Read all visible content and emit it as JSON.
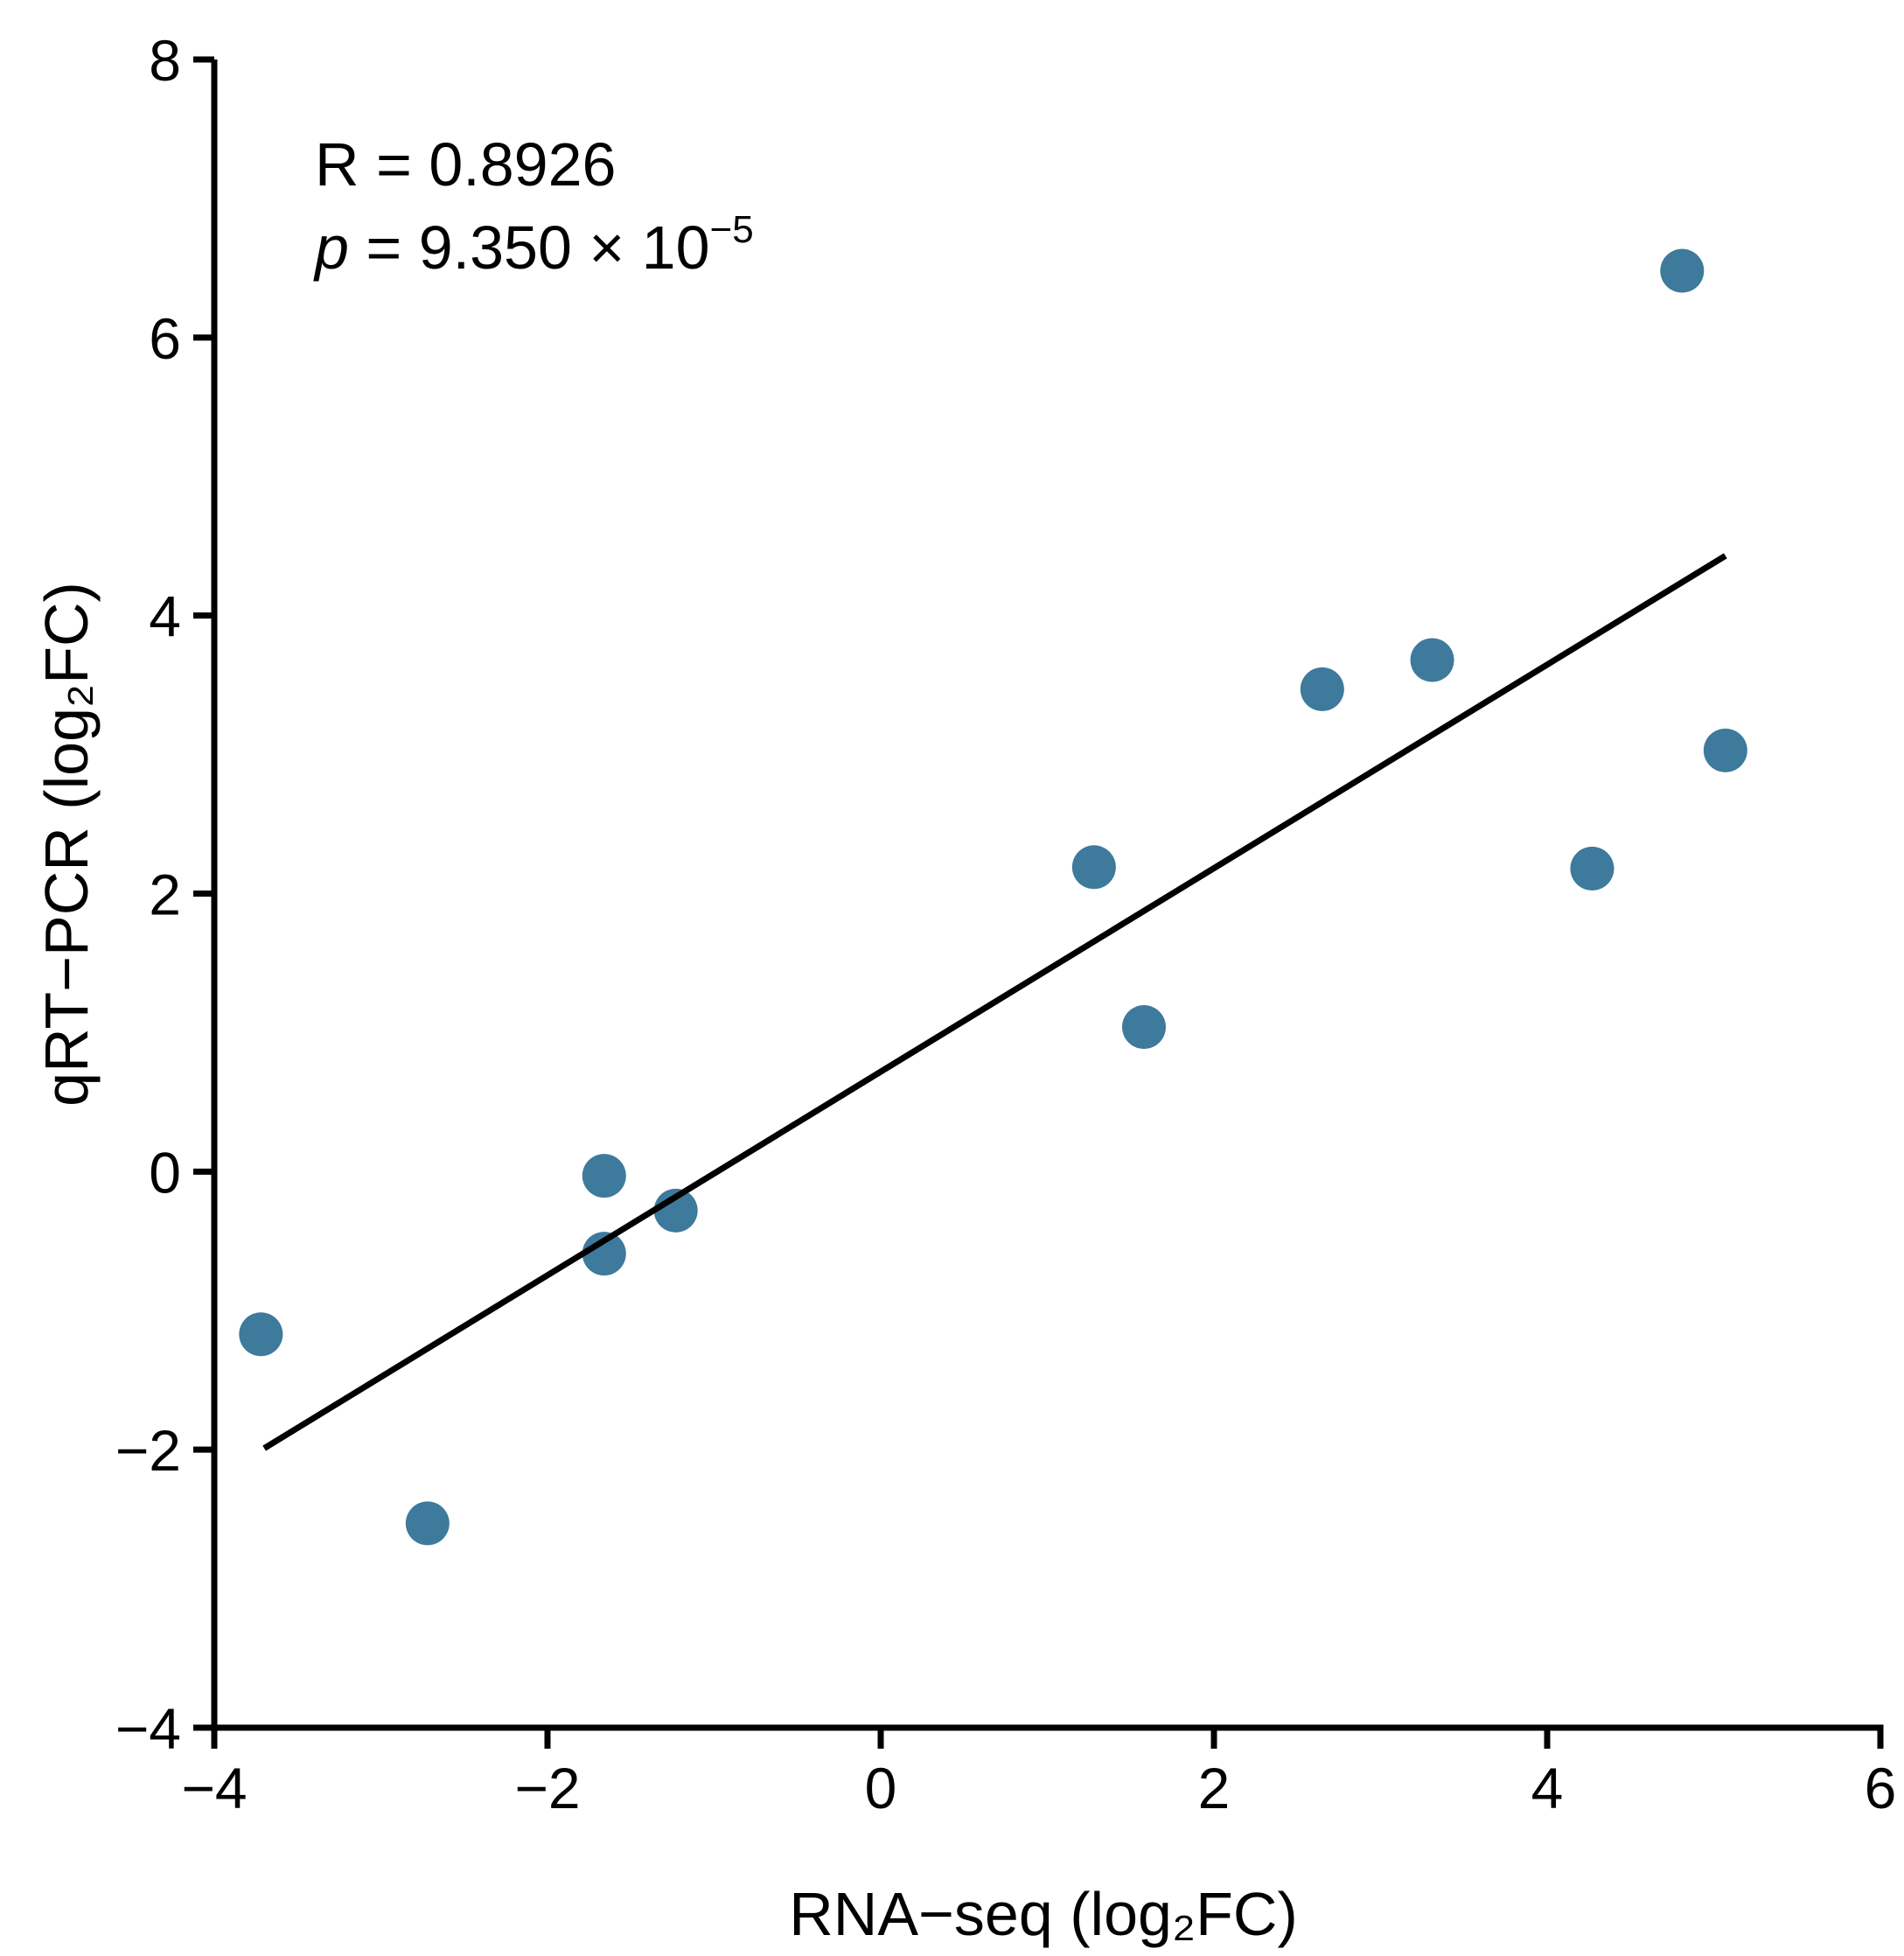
{
  "chart_data": {
    "type": "scatter",
    "title": "",
    "xlabel": "RNA−seq (log₂FC)",
    "ylabel": "qRT−PCR (log₂FC)",
    "xlim": [
      -4,
      6
    ],
    "ylim": [
      -4,
      8
    ],
    "xticks": [
      -4,
      -2,
      0,
      2,
      4,
      6
    ],
    "yticks": [
      -4,
      -2,
      0,
      2,
      4,
      6,
      8
    ],
    "xtick_labels": [
      "−4",
      "−2",
      "0",
      "2",
      "4",
      "6"
    ],
    "ytick_labels": [
      "−4",
      "−2",
      "0",
      "2",
      "4",
      "6",
      "8"
    ],
    "grid": false,
    "point_color": "#3d7a9c",
    "line_color": "#000000",
    "series": [
      {
        "name": "genes",
        "points": [
          {
            "x": -3.72,
            "y": -1.17
          },
          {
            "x": -2.72,
            "y": -2.53
          },
          {
            "x": -1.66,
            "y": -0.03
          },
          {
            "x": -1.66,
            "y": -0.59
          },
          {
            "x": -1.23,
            "y": -0.28
          },
          {
            "x": 1.28,
            "y": 2.19
          },
          {
            "x": 1.58,
            "y": 1.04
          },
          {
            "x": 2.65,
            "y": 3.47
          },
          {
            "x": 3.31,
            "y": 3.68
          },
          {
            "x": 4.27,
            "y": 2.18
          },
          {
            "x": 4.81,
            "y": 6.48
          },
          {
            "x": 5.07,
            "y": 3.03
          }
        ]
      }
    ],
    "regression_line": {
      "x": [
        -3.7,
        5.07
      ],
      "y": [
        -1.99,
        4.43
      ]
    },
    "annotations": {
      "r_text": "R = 0.8926",
      "p_symbol": "p",
      "p_text": " = 9.350 × 10",
      "p_exponent": "−5"
    }
  }
}
